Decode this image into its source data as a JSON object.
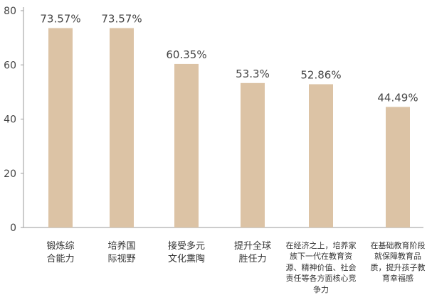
{
  "chart_data": {
    "type": "bar",
    "categories": [
      "锻炼综合能力",
      "培养国际视野",
      "接受多元文化熏陶",
      "提升全球胜任力",
      "在经济之上，培养家族下一代在教育资源、精神价值、社会责任等各方面核心竞争力",
      "在基础教育阶段就保障教育品质，提升孩子教育幸福感"
    ],
    "values": [
      73.57,
      73.57,
      60.35,
      53.3,
      52.86,
      44.49
    ],
    "value_labels": [
      "73.57%",
      "73.57%",
      "60.35%",
      "53.3%",
      "52.86%",
      "44.49%"
    ],
    "color": "#dcc3a5",
    "ylim": [
      0,
      80
    ],
    "yticks": [
      0,
      20,
      40,
      60,
      80
    ],
    "grid": false
  }
}
